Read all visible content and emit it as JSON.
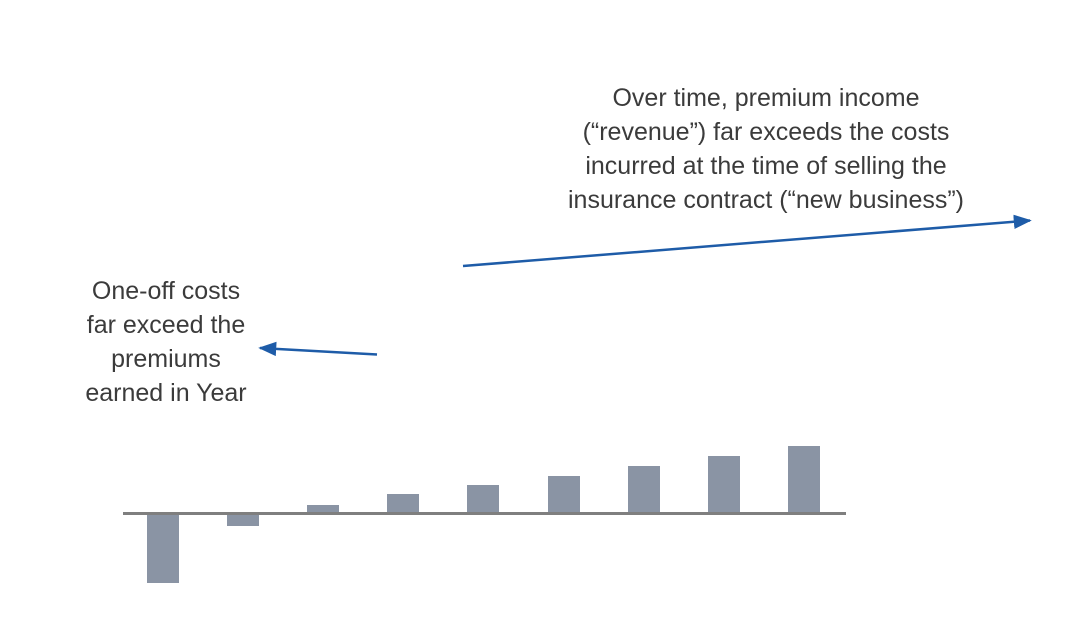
{
  "colors": {
    "background": "#ffffff",
    "bar": "#8A94A4",
    "axis": "#7F7F7F",
    "arrow": "#1E5CA8",
    "text": "#3B3B3B"
  },
  "annotations": {
    "top_right": "Over time, premium income\n(“revenue”) far exceeds the costs\nincurred at the time of selling the\ninsurance contract (“new business”)",
    "left": "One-off costs\nfar exceed the\npremiums\nearned in Year"
  },
  "chart_data": {
    "type": "bar",
    "title": "",
    "xlabel": "",
    "ylabel": "",
    "x": [
      1,
      2,
      3,
      4,
      5,
      6,
      7,
      8,
      9
    ],
    "values": [
      -68,
      -11,
      7,
      18,
      27,
      36,
      46,
      56,
      66
    ],
    "ylim": [
      -75,
      75
    ],
    "grid": false,
    "legend": null,
    "tick_labels_visible": false,
    "description": "Unlabeled single-series bar chart: large negative bar in period 1, small negative bar in period 2, then steadily increasing positive bars through period 9"
  }
}
